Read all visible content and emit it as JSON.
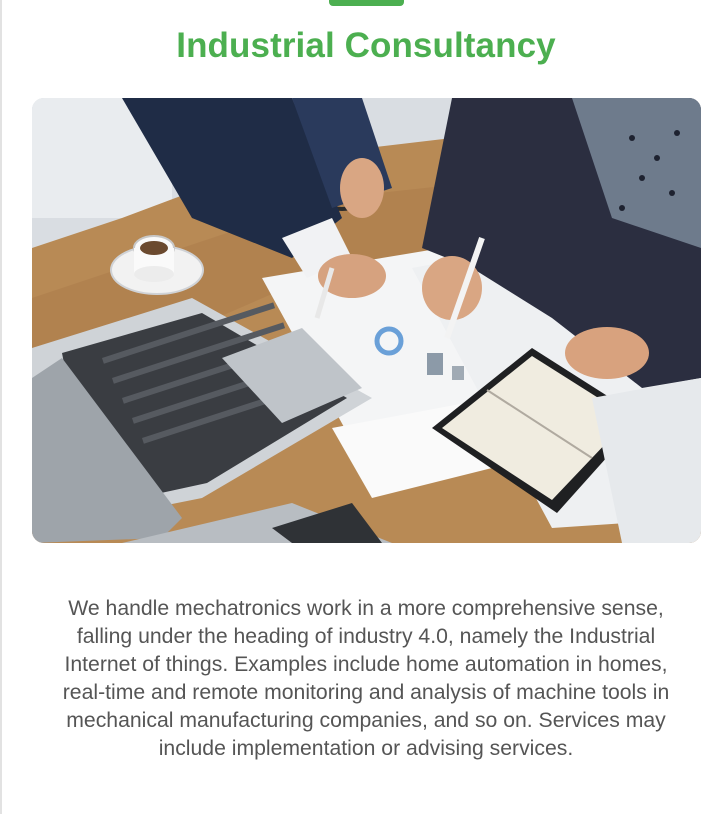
{
  "header": {
    "title": "Industrial Consultancy"
  },
  "hero_image": {
    "subject": "business-meeting-photo"
  },
  "body": {
    "description": "We handle mechatronics work in a more comprehensive sense, falling under the heading of industry 4.0, namely the Industrial Internet of things. Examples include home automation in homes, real-time and remote monitoring and analysis of machine tools in mechanical manufacturing companies, and so on. Services may include implementation or advising services."
  },
  "colors": {
    "accent": "#4caf50",
    "text": "#555555",
    "background": "#ffffff"
  }
}
